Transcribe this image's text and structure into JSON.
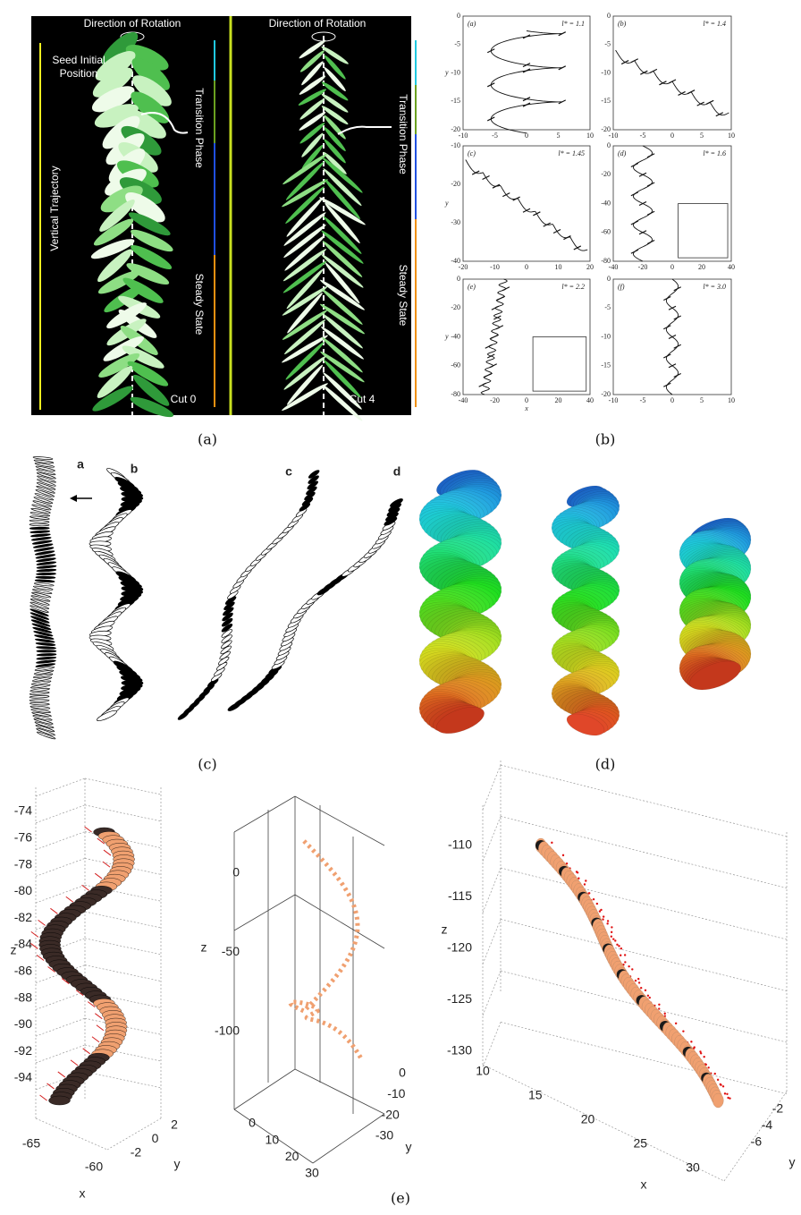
{
  "figure": {
    "a": {
      "caption": "(a)",
      "left": {
        "rotation": "Direction of Rotation",
        "seed": [
          "Seed Initial",
          "Position"
        ],
        "trajectory": "Vertical Trajectory",
        "transition": "Transition Phase",
        "steady": "Steady State",
        "cut": "Cut 0"
      },
      "right": {
        "rotation": "Direction of Rotation",
        "transition": "Transition Phase",
        "steady": "Steady State",
        "cut": "Cut 4"
      }
    },
    "b": {
      "caption": "(b)",
      "plots": [
        {
          "label": "(a)",
          "param": "l* = 1.1",
          "ylabel": "y",
          "xticks": [
            "-10",
            "-5",
            "0",
            "5",
            "10"
          ],
          "yticks": [
            "0",
            "-5",
            "-10",
            "-15",
            "-20"
          ]
        },
        {
          "label": "(b)",
          "param": "l* = 1.4",
          "xticks": [
            "-10",
            "-5",
            "0",
            "5",
            "10"
          ],
          "yticks": [
            "0",
            "-5",
            "-10",
            "-15",
            "-20"
          ]
        },
        {
          "label": "(c)",
          "param": "l* = 1.45",
          "ylabel": "y",
          "xticks": [
            "-20",
            "-10",
            "0",
            "10",
            "20"
          ],
          "yticks": [
            "-10",
            "-20",
            "-30",
            "-40"
          ]
        },
        {
          "label": "(d)",
          "param": "l* = 1.6",
          "xticks": [
            "-40",
            "-20",
            "0",
            "20",
            "40"
          ],
          "yticks": [
            "0",
            "-20",
            "-40",
            "-60",
            "-80"
          ]
        },
        {
          "label": "(e)",
          "param": "l* = 2.2",
          "ylabel": "y",
          "xlabel": "x",
          "xticks": [
            "-40",
            "-20",
            "0",
            "20",
            "40"
          ],
          "yticks": [
            "0",
            "-20",
            "-40",
            "-60",
            "-80"
          ]
        },
        {
          "label": "(f)",
          "param": "l* = 3.0",
          "xticks": [
            "-10",
            "-5",
            "0",
            "5",
            "10"
          ],
          "yticks": [
            "0",
            "-5",
            "-10",
            "-15",
            "-20"
          ]
        }
      ]
    },
    "c": {
      "caption": "(c)",
      "labels": [
        "a",
        "b",
        "c",
        "d"
      ]
    },
    "d": {
      "caption": "(d)"
    },
    "e": {
      "caption": "(e)",
      "plots": [
        {
          "zlabel": "z",
          "zticks": [
            "-74",
            "-76",
            "-78",
            "-80",
            "-82",
            "-84",
            "-86",
            "-88",
            "-90",
            "-92",
            "-94"
          ],
          "xlabel": "x",
          "xticks": [
            "-65",
            "-60"
          ],
          "ylabel": "y",
          "yticks": [
            "2",
            "0",
            "-2"
          ]
        },
        {
          "zlabel": "z",
          "zticks": [
            "0",
            "-50",
            "-100"
          ],
          "xticks": [
            "0",
            "10",
            "20",
            "30"
          ],
          "ylabel": "y",
          "yticks": [
            "0",
            "-10",
            "-20",
            "-30"
          ]
        },
        {
          "zlabel": "z",
          "zticks": [
            "-110",
            "-115",
            "-120",
            "-125",
            "-130"
          ],
          "xlabel": "x",
          "xticks": [
            "10",
            "15",
            "20",
            "25",
            "30"
          ],
          "ylabel": "y",
          "yticks": [
            "-2",
            "-4",
            "-6"
          ]
        }
      ]
    }
  }
}
